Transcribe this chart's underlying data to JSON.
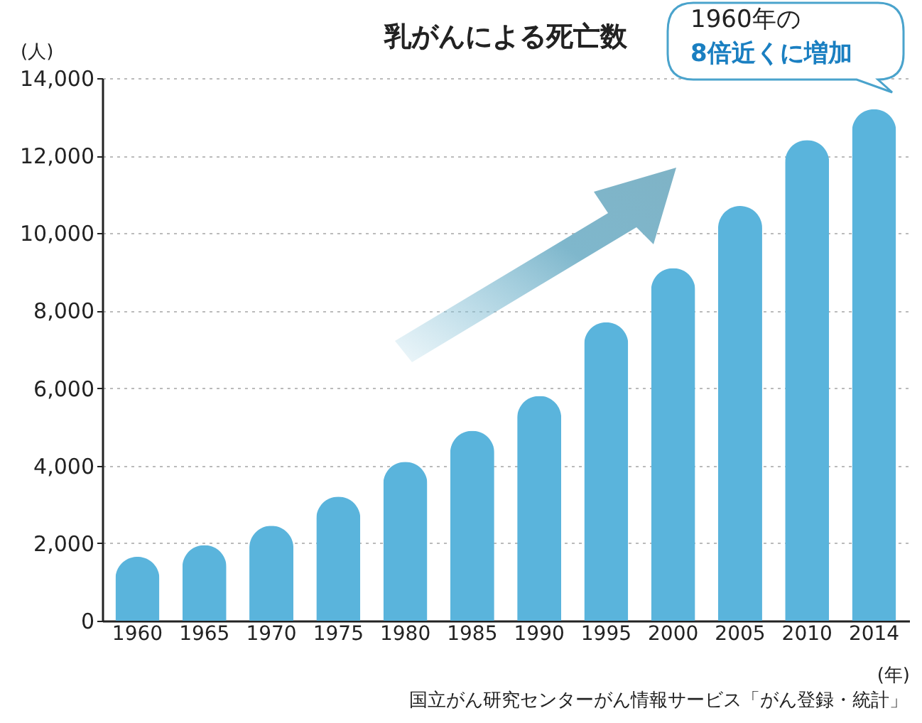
{
  "chart_data": {
    "type": "bar",
    "title": "乳がんによる死亡数",
    "ylabel": "(人)",
    "xlabel": "(年)",
    "categories": [
      "1960",
      "1965",
      "1970",
      "1975",
      "1980",
      "1985",
      "1990",
      "1995",
      "2000",
      "2005",
      "2010",
      "2014"
    ],
    "values": [
      1650,
      1950,
      2450,
      3200,
      4100,
      4900,
      5800,
      7700,
      9100,
      10700,
      12400,
      13200
    ],
    "color": "#5ab4dc",
    "ylim": [
      0,
      14000
    ],
    "yticks": [
      0,
      {
        "value": 2000,
        "label": "2,000"
      },
      {
        "value": 4000,
        "label": "4,000"
      },
      {
        "value": 6000,
        "label": "6,000"
      },
      {
        "value": 8000,
        "label": "8,000"
      },
      {
        "value": 10000,
        "label": "10,000"
      },
      {
        "value": 12000,
        "label": "12,000"
      },
      {
        "value": 14000,
        "label": "14,000"
      }
    ],
    "grid": "y",
    "annotations": [
      "1960年の",
      "8倍近くに増加",
      "国立がん研究センターがん情報サービス「がん登録・統計」"
    ]
  }
}
